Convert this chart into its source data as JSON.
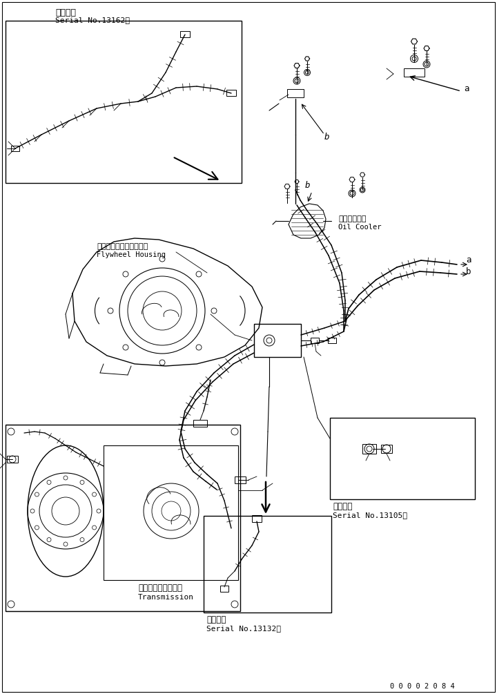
{
  "bg_color": "#ffffff",
  "line_color": "#000000",
  "title_top_left_jp": "適用号機",
  "title_top_left_en": "Serial No.13162～",
  "label_flywheel_jp": "フライホイルハウジング",
  "label_flywheel_en": "Flywheel Housing",
  "label_oilcooler_jp": "オイルクーラ",
  "label_oilcooler_en": "Oil Cooler",
  "label_transmission_jp": "トランスミッション",
  "label_transmission_en": "Transmission",
  "label_serial_13105_jp": "適用号機",
  "label_serial_13105_en": "Serial No.13105～",
  "label_serial_13132_jp": "適用号機",
  "label_serial_13132_en": "Serial No.13132～",
  "part_code": "0 0 0 0 2 0 8 4",
  "label_a": "a",
  "label_b": "b",
  "font_size_label": 8.5,
  "font_size_small": 7.5,
  "font_size_serial": 8.0
}
